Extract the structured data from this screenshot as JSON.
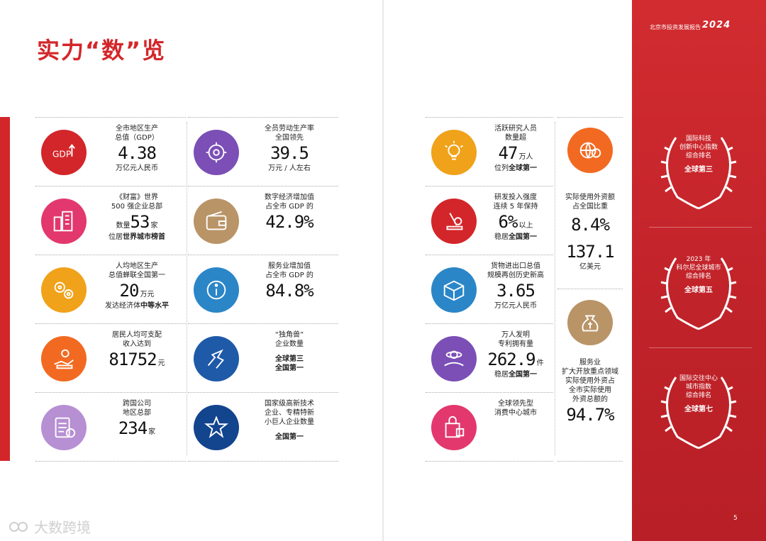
{
  "title": "实力“数”览",
  "header": {
    "report": "北京市投资发展报告",
    "year": "2024"
  },
  "page_number": "5",
  "watermark": {
    "icon": "kol-logo-icon",
    "text": "大数跨境"
  },
  "colors": {
    "brand_red": "#d3262a"
  },
  "left_col1": [
    {
      "icon": "gdp-icon",
      "color": "#d3262a",
      "l1": "全市地区生产",
      "l2": "总值（GDP）",
      "value": "4.38",
      "unit": "",
      "l3": "万亿元人民币"
    },
    {
      "icon": "buildings-icon",
      "color": "#e2386e",
      "l1": "《财富》世界",
      "l2": "500 强企业总部",
      "pre": "数量",
      "value": "53",
      "unit": "家",
      "l3": "位居",
      "l3b": "世界城市榜首"
    },
    {
      "icon": "gears-icon",
      "color": "#f0a21a",
      "l1": "人均地区生产",
      "l2": "总值蝉联全国第一",
      "value": "20",
      "unit": "万元",
      "l3": "发达经济体",
      "l3b": "中等水平"
    },
    {
      "icon": "income-icon",
      "color": "#f26a21",
      "l1": "居民人均可支配",
      "l2": "收入达到",
      "value": "81752",
      "unit": "元",
      "l3": ""
    },
    {
      "icon": "document-icon",
      "color": "#b78fd3",
      "l1": "跨国公司",
      "l2": "地区总部",
      "value": "234",
      "unit": "家",
      "l3": ""
    }
  ],
  "left_col2": [
    {
      "icon": "labor-gear-icon",
      "color": "#7b4fb6",
      "l1": "全员劳动生产率",
      "l2": "全国领先",
      "value": "39.5",
      "unit": "",
      "l3": "万元 / 人左右"
    },
    {
      "icon": "wallet-icon",
      "color": "#b99467",
      "l1": "数字经济增加值",
      "l2": "占全市 GDP 的",
      "value": "42.9%",
      "unit": "",
      "l3": ""
    },
    {
      "icon": "info-icon",
      "color": "#2b86c8",
      "l1": "服务业增加值",
      "l2": "占全市 GDP 的",
      "value": "84.8%",
      "unit": "",
      "l3": ""
    },
    {
      "icon": "unicorn-icon",
      "color": "#1e5aa8",
      "l1": "“独角兽”",
      "l2": "企业数量",
      "value": "",
      "unit": "",
      "l3": "全球第三",
      "l4": "全国第一"
    },
    {
      "icon": "star-icon",
      "color": "#13448e",
      "l1": "国家级高新技术",
      "l2": "企业、专精特新",
      "l2b": "小巨人企业数量",
      "value": "",
      "unit": "",
      "l3": "全国第一"
    }
  ],
  "right_col1": [
    {
      "icon": "lightbulb-icon",
      "color": "#f0a21a",
      "l1": "活跃研究人员",
      "l2": "数量超",
      "value": "47",
      "unit": "万人",
      "l3": "位列",
      "l3b": "全球第一"
    },
    {
      "icon": "microscope-icon",
      "color": "#d3262a",
      "l1": "研发投入强度",
      "l2": "连续 5 年保持",
      "value": "6%",
      "unit": "以上",
      "l3": "稳居",
      "l3b": "全国第一"
    },
    {
      "icon": "box-icon",
      "color": "#2b86c8",
      "l1": "货物进出口总值",
      "l2": "规模再创历史新高",
      "value": "3.65",
      "unit": "",
      "l3": "万亿元人民币"
    },
    {
      "icon": "patent-icon",
      "color": "#7b4fb6",
      "l1": "万人发明",
      "l2": "专利拥有量",
      "value": "262.9",
      "unit": "件",
      "l3": "稳居",
      "l3b": "全国第一"
    },
    {
      "icon": "shopping-bag-icon",
      "color": "#e2386e",
      "l1": "全球领先型",
      "l2": "消费中心城市",
      "value": "",
      "unit": "",
      "l3": ""
    }
  ],
  "right_col2": {
    "fdi": {
      "icon": "globe-dollar-icon",
      "color": "#f26a21",
      "l1": "实际使用外资额",
      "l2": "占全国比重",
      "value1": "8.4%",
      "value2": "137.1",
      "unit2": "亿美元"
    },
    "service": {
      "icon": "money-bag-icon",
      "color": "#b99467",
      "l1": "服务业",
      "l2": "扩大开放重点领域",
      "l3": "实际使用外资占",
      "l4": "全市实际使用",
      "l5": "外资总额的",
      "value": "94.7%"
    }
  },
  "awards": [
    {
      "lines": [
        "国际科技",
        "创新中心指数",
        "综合排名"
      ],
      "rank": "全球第三"
    },
    {
      "lines": [
        "2023 年",
        "科尔尼全球城市",
        "综合排名"
      ],
      "rank": "全球第五"
    },
    {
      "lines": [
        "国际交往中心",
        "城市指数",
        "综合排名"
      ],
      "rank": "全球第七"
    }
  ]
}
